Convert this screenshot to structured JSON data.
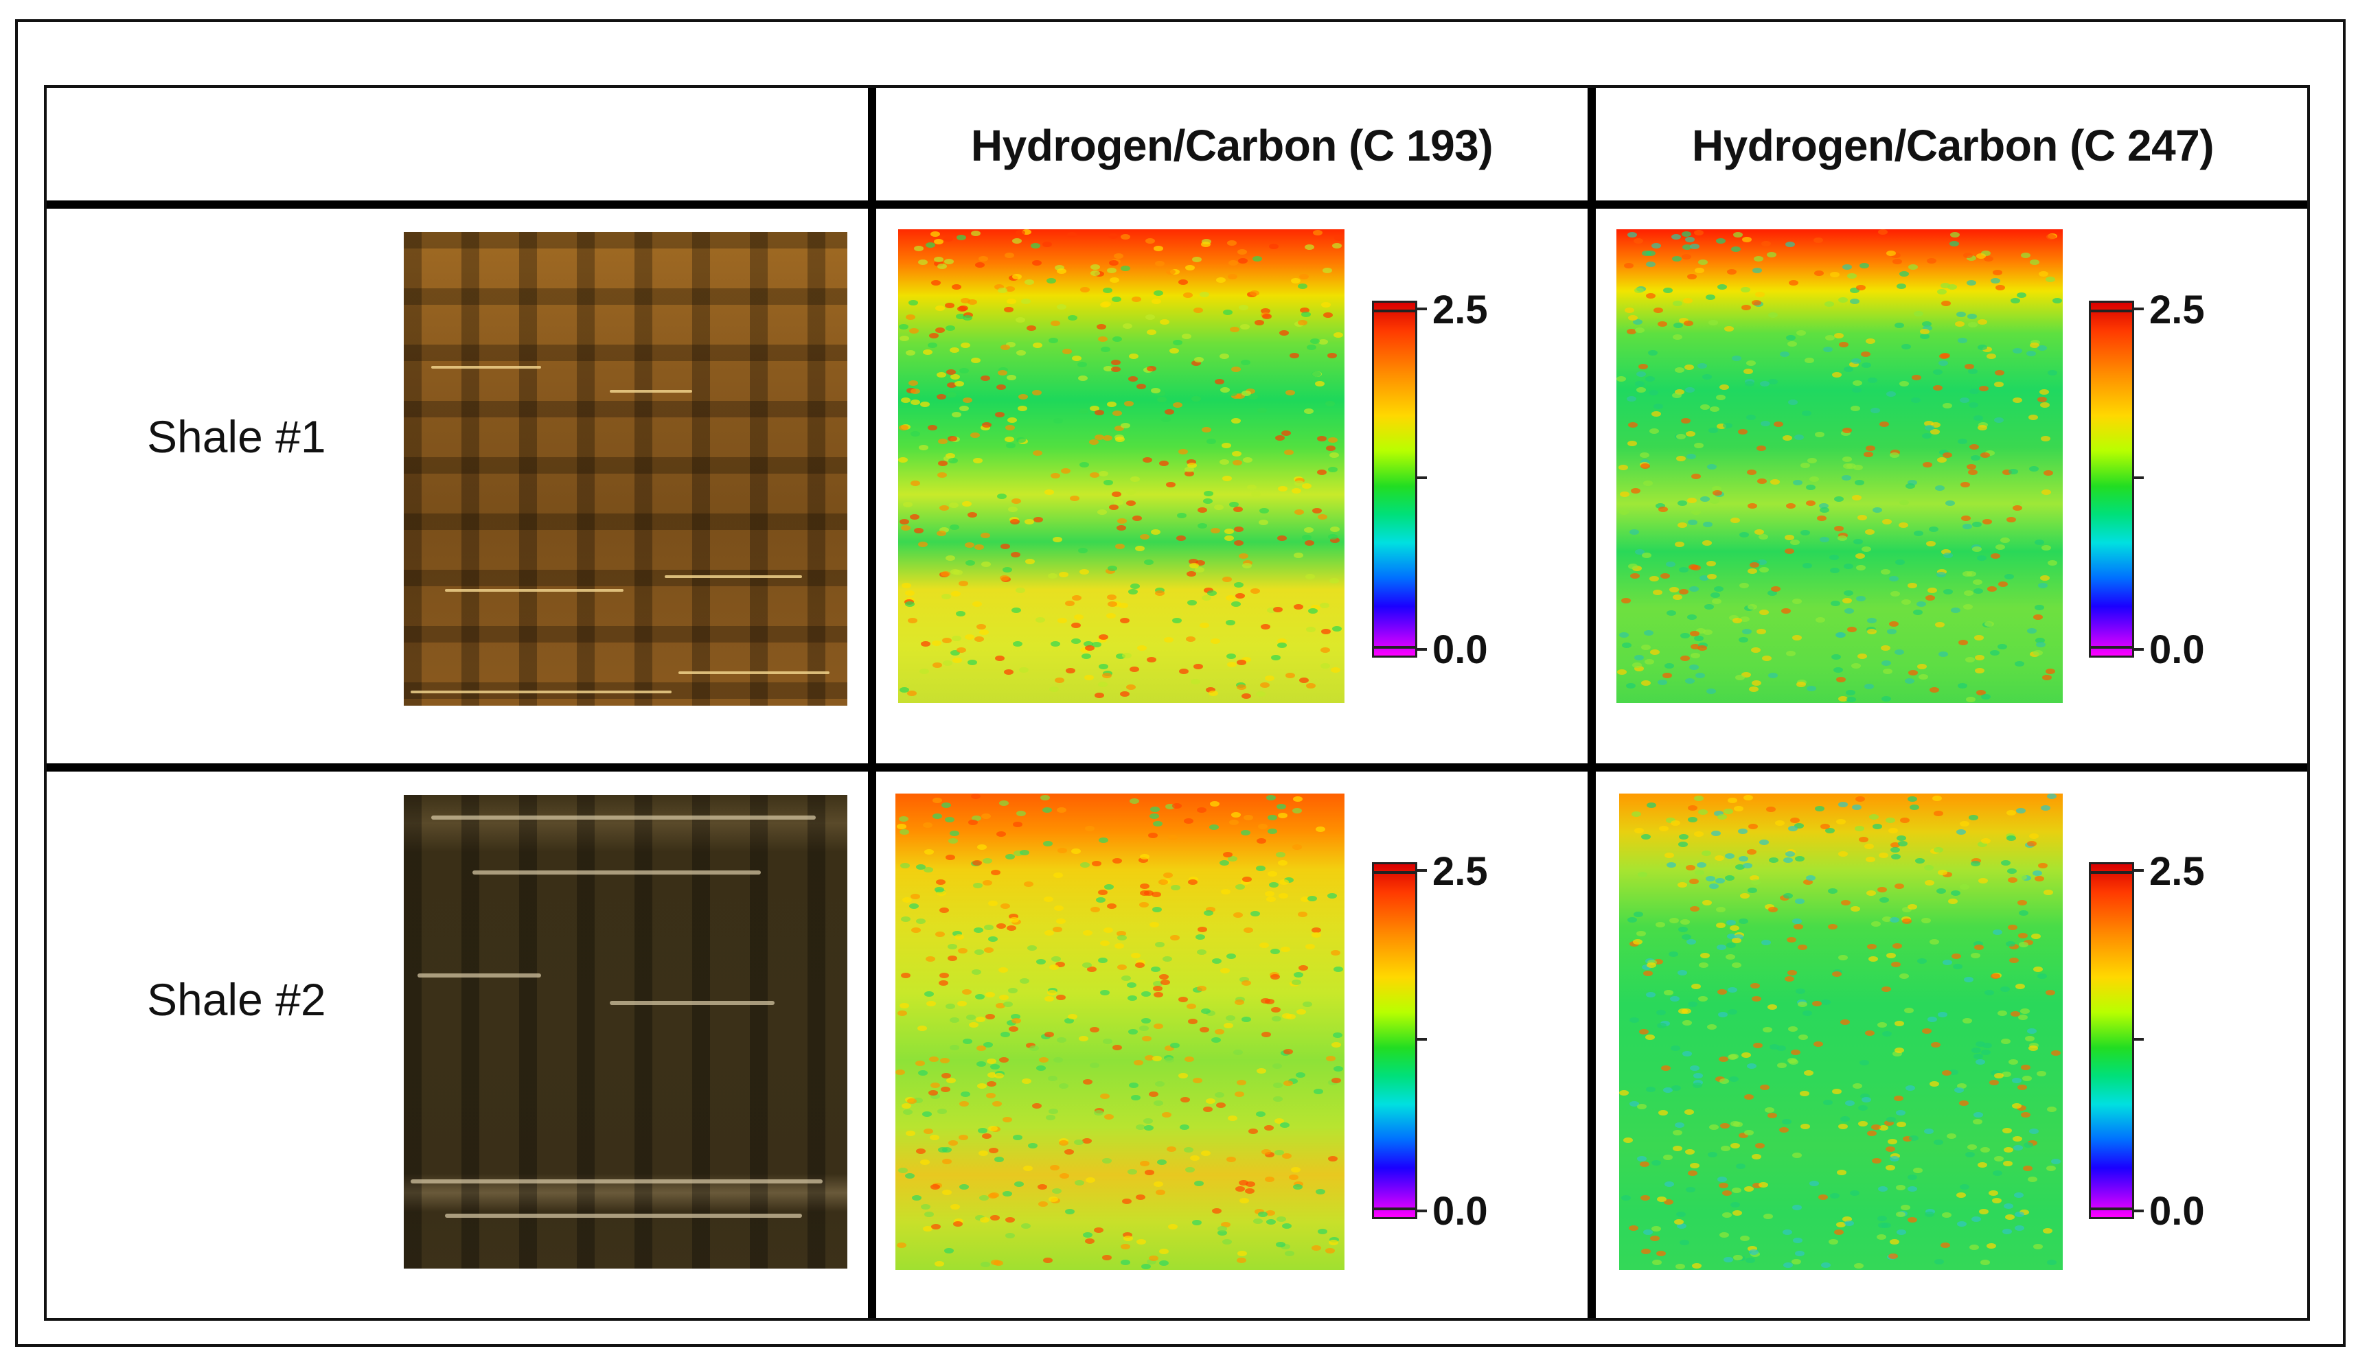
{
  "table": {
    "header": {
      "col1": "",
      "col2": "Hydrogen/Carbon (C 193)",
      "col3": "Hydrogen/Carbon (C 247)"
    },
    "rows": [
      {
        "label": "Shale #1"
      },
      {
        "label": "Shale #2"
      }
    ],
    "colorbar": {
      "max_label": "2.5",
      "min_label": "0.0",
      "colors": [
        "#d90000",
        "#ff8c00",
        "#ffd800",
        "#22dd22",
        "#00e0e0",
        "#0070ff",
        "#8a00ff",
        "#ff00ff"
      ]
    }
  }
}
